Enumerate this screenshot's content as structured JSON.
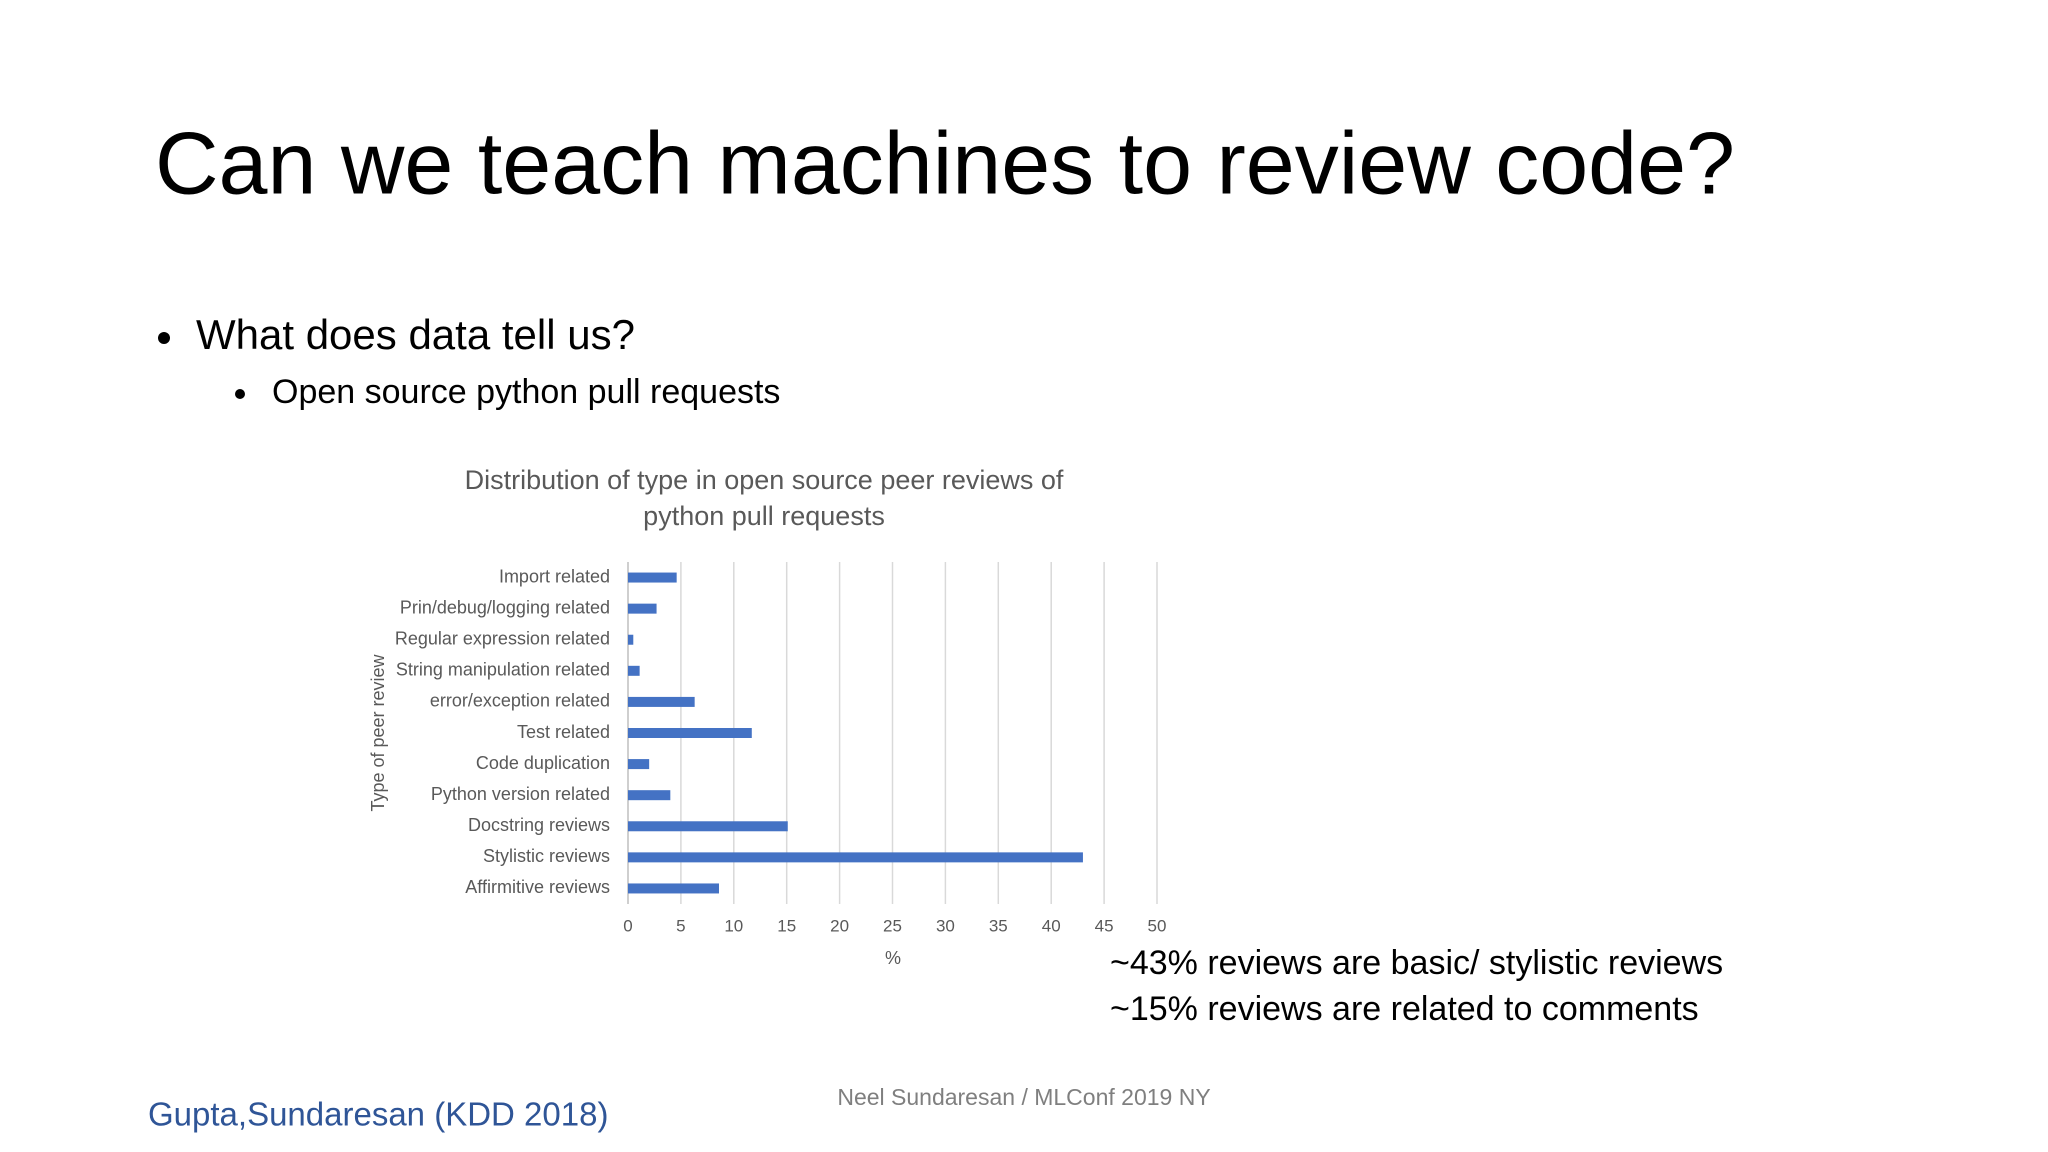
{
  "slide": {
    "title": "Can we teach machines to review code?",
    "bullets": [
      "What does data tell us?",
      "Open source python pull requests"
    ],
    "notes": [
      "~43% reviews are basic/ stylistic reviews",
      "~15% reviews are related to comments"
    ],
    "citation": "Gupta,Sundaresan (KDD 2018)",
    "footer": "Neel Sundaresan / MLConf 2019 NY"
  },
  "chart_data": {
    "type": "hbar",
    "title": [
      "Distribution of type in open source peer reviews of",
      "python pull requests"
    ],
    "x_label": "%",
    "y_label": "Type of peer review",
    "categories": [
      "Import related",
      "Prin/debug/logging related",
      "Regular expression related",
      "String manipulation related",
      "error/exception related",
      "Test related",
      "Code duplication",
      "Python version related",
      "Docstring reviews",
      "Stylistic reviews",
      "Affirmitive reviews"
    ],
    "values": [
      4.6,
      2.7,
      0.5,
      1.1,
      6.3,
      11.7,
      2.0,
      4.0,
      15.1,
      43.0,
      8.6
    ],
    "color": "#4472c4",
    "xlim": [
      0,
      50
    ],
    "xticks": [
      0,
      5,
      10,
      15,
      20,
      25,
      30,
      35,
      40,
      45,
      50
    ],
    "grid": true
  }
}
